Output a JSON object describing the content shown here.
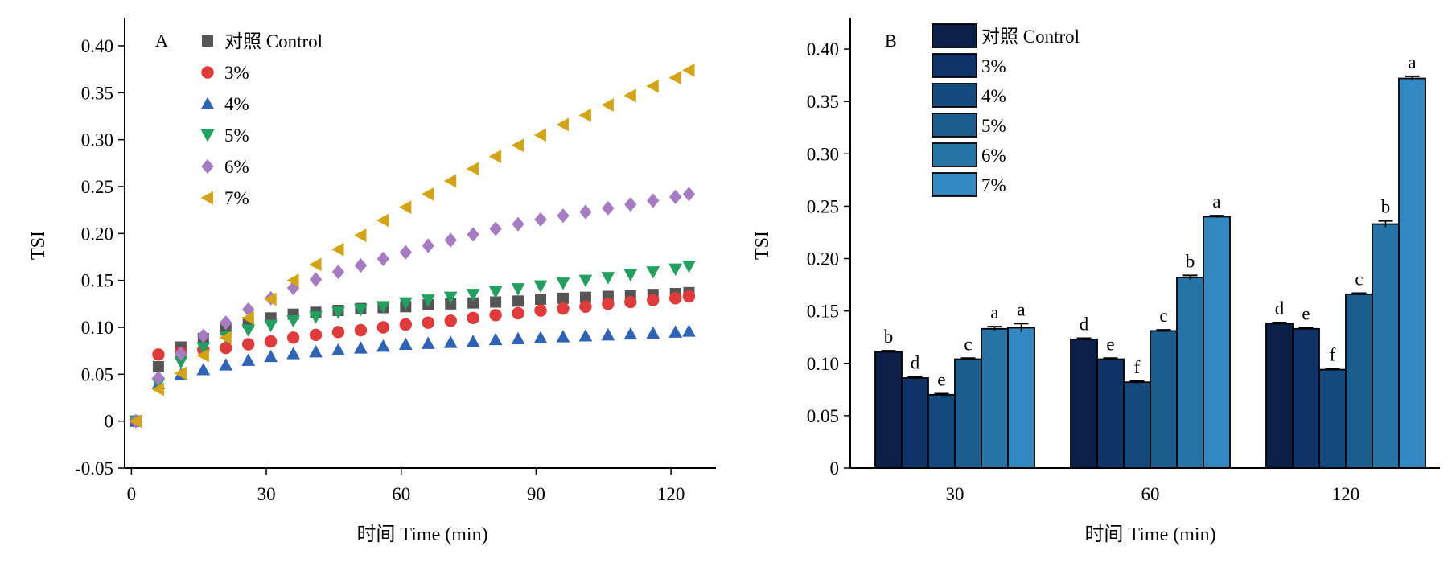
{
  "chart_data": [
    {
      "panel": "A",
      "type": "scatter",
      "xlabel": "时间 Time (min)",
      "ylabel": "TSI",
      "xlim": [
        -1.5,
        130
      ],
      "ylim": [
        -0.05,
        0.43
      ],
      "xticks": [
        0,
        30,
        60,
        90,
        120
      ],
      "yticks": [
        -0.05,
        0,
        0.05,
        0.1,
        0.15,
        0.2,
        0.25,
        0.3,
        0.35,
        0.4
      ],
      "ytick_labels": [
        "-0.05",
        "0",
        "0.05",
        "0.10",
        "0.15",
        "0.20",
        "0.25",
        "0.30",
        "0.35",
        "0.40"
      ],
      "x": [
        1,
        6,
        11,
        16,
        21,
        26,
        31,
        36,
        41,
        46,
        51,
        56,
        61,
        66,
        71,
        76,
        81,
        86,
        91,
        96,
        101,
        106,
        111,
        116,
        121,
        124
      ],
      "series": [
        {
          "name": "对照 Control",
          "marker": "square",
          "color": "#555555",
          "values": [
            0,
            0.058,
            0.079,
            0.088,
            0.098,
            0.105,
            0.11,
            0.114,
            0.116,
            0.118,
            0.12,
            0.121,
            0.122,
            0.124,
            0.125,
            0.126,
            0.127,
            0.128,
            0.13,
            0.131,
            0.132,
            0.133,
            0.134,
            0.135,
            0.136,
            0.137
          ]
        },
        {
          "name": "3%",
          "marker": "circle",
          "color": "#e03a3a",
          "values": [
            0,
            0.071,
            0.073,
            0.076,
            0.078,
            0.082,
            0.085,
            0.089,
            0.092,
            0.095,
            0.097,
            0.1,
            0.103,
            0.105,
            0.107,
            0.11,
            0.113,
            0.115,
            0.118,
            0.12,
            0.122,
            0.125,
            0.127,
            0.129,
            0.131,
            0.133
          ]
        },
        {
          "name": "4%",
          "marker": "triangle-up",
          "color": "#2f63b5",
          "values": [
            0,
            0.04,
            0.05,
            0.055,
            0.06,
            0.065,
            0.069,
            0.072,
            0.074,
            0.076,
            0.078,
            0.08,
            0.082,
            0.083,
            0.084,
            0.085,
            0.087,
            0.088,
            0.089,
            0.09,
            0.091,
            0.092,
            0.093,
            0.094,
            0.095,
            0.096
          ]
        },
        {
          "name": "5%",
          "marker": "triangle-down",
          "color": "#22a060",
          "values": [
            0,
            0.04,
            0.063,
            0.078,
            0.09,
            0.097,
            0.102,
            0.107,
            0.111,
            0.116,
            0.119,
            0.122,
            0.126,
            0.129,
            0.132,
            0.135,
            0.138,
            0.141,
            0.144,
            0.147,
            0.15,
            0.153,
            0.156,
            0.159,
            0.162,
            0.165
          ]
        },
        {
          "name": "6%",
          "marker": "diamond",
          "color": "#a57bc2",
          "values": [
            0,
            0.046,
            0.072,
            0.091,
            0.105,
            0.119,
            0.131,
            0.142,
            0.151,
            0.159,
            0.166,
            0.173,
            0.18,
            0.187,
            0.193,
            0.199,
            0.205,
            0.21,
            0.215,
            0.219,
            0.223,
            0.227,
            0.231,
            0.235,
            0.239,
            0.242
          ]
        },
        {
          "name": "7%",
          "marker": "triangle-left",
          "color": "#d4a417",
          "values": [
            0,
            0.034,
            0.051,
            0.07,
            0.089,
            0.11,
            0.13,
            0.15,
            0.167,
            0.183,
            0.198,
            0.214,
            0.228,
            0.242,
            0.256,
            0.269,
            0.282,
            0.294,
            0.305,
            0.316,
            0.326,
            0.337,
            0.347,
            0.357,
            0.366,
            0.374
          ]
        }
      ],
      "legend_position": "top-left"
    },
    {
      "panel": "B",
      "type": "bar",
      "xlabel": "时间 Time (min)",
      "ylabel": "TSI",
      "ylim": [
        0,
        0.43
      ],
      "yticks": [
        0,
        0.05,
        0.1,
        0.15,
        0.2,
        0.25,
        0.3,
        0.35,
        0.4
      ],
      "ytick_labels": [
        "0",
        "0.05",
        "0.10",
        "0.15",
        "0.20",
        "0.25",
        "0.30",
        "0.35",
        "0.40"
      ],
      "categories": [
        "30",
        "60",
        "120"
      ],
      "series": [
        {
          "name": "对照 Control",
          "color": "#0b2048",
          "values": [
            0.111,
            0.123,
            0.138
          ],
          "errors": [
            0.001,
            0.001,
            0.001
          ],
          "letters": [
            "b",
            "d",
            "d"
          ]
        },
        {
          "name": "3%",
          "color": "#0f3366",
          "values": [
            0.086,
            0.104,
            0.133
          ],
          "errors": [
            0.001,
            0.001,
            0.001
          ],
          "letters": [
            "d",
            "e",
            "e"
          ]
        },
        {
          "name": "4%",
          "color": "#124a7e",
          "values": [
            0.07,
            0.082,
            0.094
          ],
          "errors": [
            0.001,
            0.001,
            0.001
          ],
          "letters": [
            "e",
            "f",
            "f"
          ]
        },
        {
          "name": "5%",
          "color": "#1a5d8d",
          "values": [
            0.104,
            0.131,
            0.166
          ],
          "errors": [
            0.001,
            0.001,
            0.001
          ],
          "letters": [
            "c",
            "c",
            "c"
          ]
        },
        {
          "name": "6%",
          "color": "#2474a6",
          "values": [
            0.133,
            0.182,
            0.233
          ],
          "errors": [
            0.002,
            0.002,
            0.003
          ],
          "letters": [
            "a",
            "b",
            "b"
          ]
        },
        {
          "name": "7%",
          "color": "#3288c0",
          "values": [
            0.134,
            0.24,
            0.372
          ],
          "errors": [
            0.004,
            0.001,
            0.002
          ],
          "letters": [
            "a",
            "a",
            "a"
          ]
        }
      ],
      "legend_position": "top-left"
    }
  ],
  "panel_labels": {
    "a": "A",
    "b": "B"
  }
}
